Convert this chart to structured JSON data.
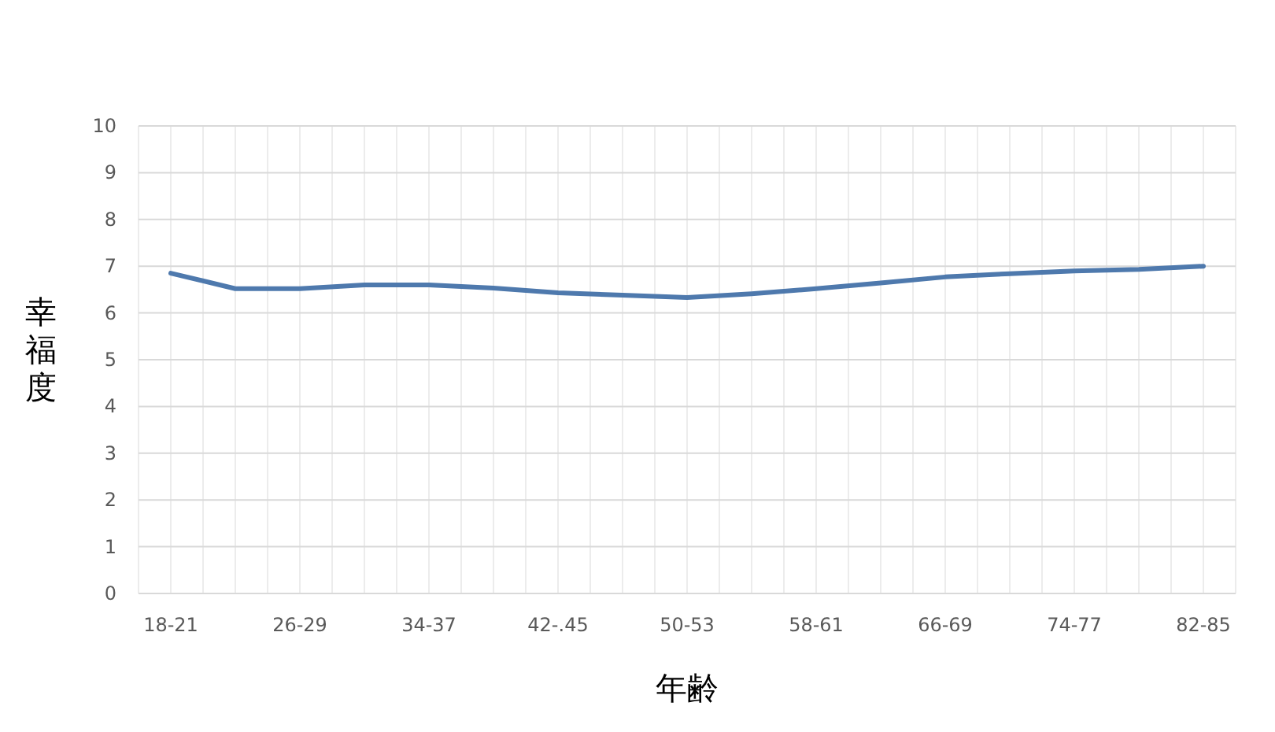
{
  "chart_data": {
    "type": "line",
    "xlabel": "年齢",
    "ylabel": "幸福度",
    "categories": [
      "18-21",
      null,
      "26-29",
      null,
      "34-37",
      null,
      "42-.45",
      null,
      "50-53",
      null,
      "58-61",
      null,
      "66-69",
      null,
      "74-77",
      null,
      "82-85"
    ],
    "series": [
      {
        "color": "#4e79ad",
        "values": [
          6.85,
          6.52,
          6.52,
          6.6,
          6.6,
          6.53,
          6.43,
          6.38,
          6.33,
          6.41,
          6.52,
          6.64,
          6.77,
          6.84,
          6.9,
          6.93,
          7.0
        ]
      }
    ],
    "ylim": [
      0,
      10
    ],
    "yticks": [
      0,
      1,
      2,
      3,
      4,
      5,
      6,
      7,
      8,
      9,
      10
    ],
    "grid": true,
    "marker": "none",
    "line_style": "solid"
  }
}
